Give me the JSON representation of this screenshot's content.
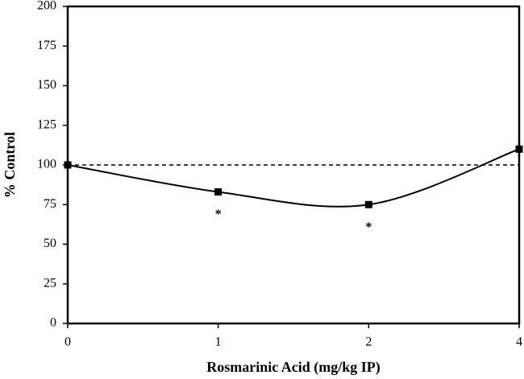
{
  "chart_data": {
    "type": "line",
    "x_label": "Rosmarinic Acid (mg/kg IP)",
    "y_label": "% Control",
    "categories": [
      "0",
      "1",
      "2",
      "4"
    ],
    "values": [
      100,
      83,
      75,
      110
    ],
    "point_labels": [
      null,
      "*",
      "*",
      null
    ],
    "color": "#000000",
    "smooth": true,
    "reference_line": 100,
    "ylim": [
      0,
      200
    ],
    "yticks": [
      0,
      25,
      50,
      75,
      100,
      125,
      150,
      175,
      200
    ]
  }
}
